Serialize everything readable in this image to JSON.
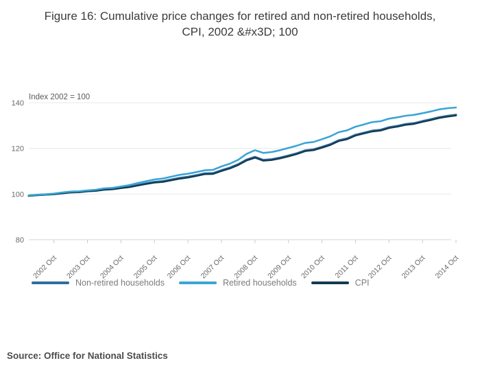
{
  "title": "Figure 16: Cumulative price changes for retired and non-retired households, CPI, 2002 &#x3D; 100",
  "source": "Source: Office for National Statistics",
  "colors": {
    "non_retired": "#2e6e9e",
    "retired": "#3aa5d6",
    "cpi": "#133b52",
    "grid": "#e8e8e8",
    "axis_line": "#d4d4d4",
    "tick": "#c3ccd6",
    "axis_text": "#696969",
    "annotation_text": "#5a5a5a"
  },
  "chart_data": {
    "type": "line",
    "title": "Figure 16: Cumulative price changes for retired and non-retired households, CPI, 2002 &#x3D; 100",
    "annotation": "Index 2002 = 100",
    "x_start": "2002-01",
    "x_end": "2014-10",
    "frequency": "quarterly",
    "x_tick_labels": [
      "2002 Oct",
      "2003 Oct",
      "2004 Oct",
      "2005 Oct",
      "2006 Oct",
      "2007 Oct",
      "2008 Oct",
      "2009 Oct",
      "2010 Oct",
      "2011 Oct",
      "2012 Oct",
      "2013 Oct",
      "2014 Oct"
    ],
    "y_ticks": [
      140,
      120,
      100,
      80
    ],
    "ylim": [
      80,
      140
    ],
    "grid": "horizontal",
    "legend_position": "bottom",
    "series": [
      {
        "name": "Non-retired households",
        "color": "#2e6e9e",
        "values": [
          99.3,
          99.6,
          99.8,
          100.0,
          100.4,
          100.8,
          100.9,
          101.3,
          101.5,
          102.0,
          102.2,
          102.7,
          103.2,
          103.9,
          104.6,
          105.3,
          105.6,
          106.3,
          107.0,
          107.5,
          108.2,
          109.0,
          109.1,
          110.4,
          111.5,
          113.0,
          115.0,
          116.2,
          114.9,
          115.2,
          115.9,
          116.8,
          117.8,
          119.1,
          119.5,
          120.6,
          121.8,
          123.5,
          124.3,
          125.9,
          126.8,
          127.7,
          128.1,
          129.2,
          129.8,
          130.6,
          131.0,
          131.9,
          132.7,
          133.6,
          134.2,
          134.7
        ]
      },
      {
        "name": "Retired households",
        "color": "#3aa5d6",
        "values": [
          99.4,
          99.7,
          99.9,
          100.2,
          100.7,
          101.1,
          101.2,
          101.6,
          101.9,
          102.5,
          102.7,
          103.3,
          103.9,
          104.8,
          105.6,
          106.4,
          106.8,
          107.6,
          108.4,
          108.9,
          109.6,
          110.4,
          110.6,
          112.1,
          113.3,
          115.0,
          117.6,
          119.2,
          118.0,
          118.4,
          119.2,
          120.2,
          121.2,
          122.4,
          122.8,
          124.0,
          125.3,
          127.1,
          127.9,
          129.5,
          130.5,
          131.5,
          131.9,
          133.0,
          133.6,
          134.3,
          134.7,
          135.4,
          136.2,
          137.1,
          137.6,
          137.9
        ]
      },
      {
        "name": "CPI",
        "color": "#133b52",
        "values": [
          99.2,
          99.5,
          99.7,
          99.9,
          100.3,
          100.7,
          100.8,
          101.2,
          101.4,
          101.9,
          102.1,
          102.6,
          103.0,
          103.7,
          104.4,
          105.0,
          105.3,
          106.0,
          106.7,
          107.2,
          107.9,
          108.7,
          108.8,
          110.1,
          111.2,
          112.7,
          114.7,
          115.9,
          114.6,
          114.9,
          115.6,
          116.5,
          117.5,
          118.8,
          119.2,
          120.3,
          121.5,
          123.2,
          124.0,
          125.6,
          126.5,
          127.4,
          127.8,
          128.9,
          129.5,
          130.3,
          130.7,
          131.6,
          132.4,
          133.3,
          133.9,
          134.4
        ]
      }
    ]
  }
}
